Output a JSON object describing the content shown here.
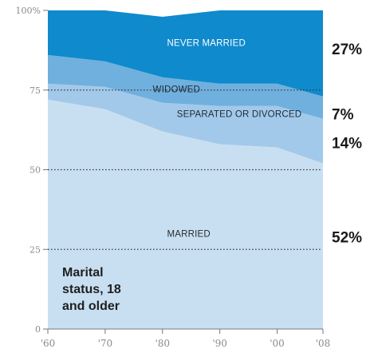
{
  "chart_data": {
    "type": "area",
    "stacked": true,
    "title_lines": [
      "Marital",
      "status, 18",
      "and older"
    ],
    "x": [
      1960,
      1970,
      1980,
      1990,
      2000,
      2008
    ],
    "x_tick_labels": [
      "'60",
      "'70",
      "'80",
      "'90",
      "'00",
      "'08"
    ],
    "y_ticks": [
      0,
      25,
      50,
      75,
      100
    ],
    "y_tick_labels": [
      "0",
      "25",
      "50",
      "75",
      "100%"
    ],
    "ylim": [
      0,
      100
    ],
    "grid": "dotted-horizontal",
    "series": [
      {
        "name": "MARRIED",
        "values": [
          72,
          69,
          62,
          58,
          57,
          52
        ],
        "color": "#c8dff2",
        "label_color": "#2a2a2a",
        "end_label": "52%"
      },
      {
        "name": "SEPARATED OR DIVORCED",
        "values": [
          5,
          7,
          9,
          12,
          13,
          14
        ],
        "color": "#a2c9ea",
        "label_color": "#1e2a36",
        "end_label": "14%"
      },
      {
        "name": "WIDOWED",
        "values": [
          9,
          8,
          8,
          7,
          7,
          7
        ],
        "color": "#6fb0de",
        "label_color": "#1e2a36",
        "end_label": "7%"
      },
      {
        "name": "NEVER MARRIED",
        "values": [
          14,
          16,
          19,
          23,
          23,
          27
        ],
        "color": "#0f8acc",
        "label_color": "#ffffff",
        "end_label": "27%"
      }
    ]
  }
}
